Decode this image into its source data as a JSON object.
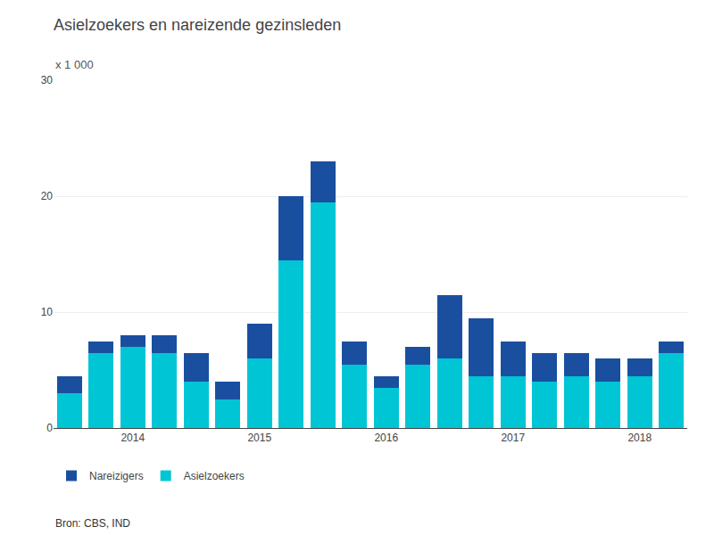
{
  "chart_data": {
    "type": "bar",
    "title": "Asielzoekers en nareizende gezinsleden",
    "subtitle": "x 1 000",
    "annotations": [
      "Bron: CBS, IND"
    ],
    "categories": [
      null,
      null,
      "2014",
      null,
      null,
      null,
      "2015",
      null,
      null,
      null,
      "2016",
      null,
      null,
      null,
      "2017",
      null,
      null,
      null,
      "2018",
      null
    ],
    "series": [
      {
        "name": "Asielzoekers",
        "color": "#00C5D5",
        "values": [
          3.0,
          6.5,
          7.0,
          6.5,
          4.0,
          2.5,
          6.0,
          14.5,
          19.5,
          5.5,
          3.5,
          5.5,
          6.0,
          4.5,
          4.5,
          4.0,
          4.5,
          4.0,
          4.5,
          6.5
        ]
      },
      {
        "name": "Nareizigers",
        "color": "#1A4FA0",
        "values": [
          1.5,
          1.0,
          1.0,
          1.5,
          2.5,
          1.5,
          3.0,
          5.5,
          3.5,
          2.0,
          1.0,
          1.5,
          5.5,
          5.0,
          3.0,
          2.5,
          2.0,
          2.0,
          1.5,
          1.0
        ]
      }
    ],
    "stacked": true,
    "ylim": [
      0,
      30
    ],
    "yticks": [
      0,
      10,
      20,
      30
    ],
    "grid": true,
    "legend": "bottom"
  }
}
